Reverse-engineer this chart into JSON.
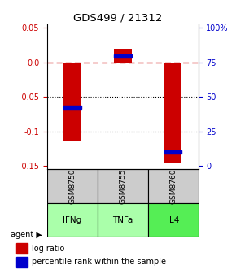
{
  "title": "GDS499 / 21312",
  "samples": [
    "GSM8750",
    "GSM8755",
    "GSM8760"
  ],
  "agents": [
    "IFNg",
    "TNFa",
    "IL4"
  ],
  "log_ratios": [
    -0.115,
    0.02,
    -0.145
  ],
  "percentile_ranks": [
    0.43,
    0.78,
    0.12
  ],
  "ylim": [
    -0.155,
    0.055
  ],
  "yticks_left": [
    0.05,
    0.0,
    -0.05,
    -0.1,
    -0.15
  ],
  "yticks_right_vals": [
    0.05,
    0.0,
    -0.05,
    -0.1,
    -0.15
  ],
  "yticks_right_labels": [
    "100%",
    "75",
    "50",
    "25",
    "0"
  ],
  "bar_color": "#cc0000",
  "dot_color": "#0000cc",
  "agent_colors": [
    "#aaffaa",
    "#aaffaa",
    "#55ee55"
  ],
  "sample_bg_color": "#cccccc",
  "bar_width": 0.35,
  "grid_lines": [
    -0.05,
    -0.1
  ],
  "legend_bar_color": "#cc0000",
  "legend_dot_color": "#0000cc"
}
